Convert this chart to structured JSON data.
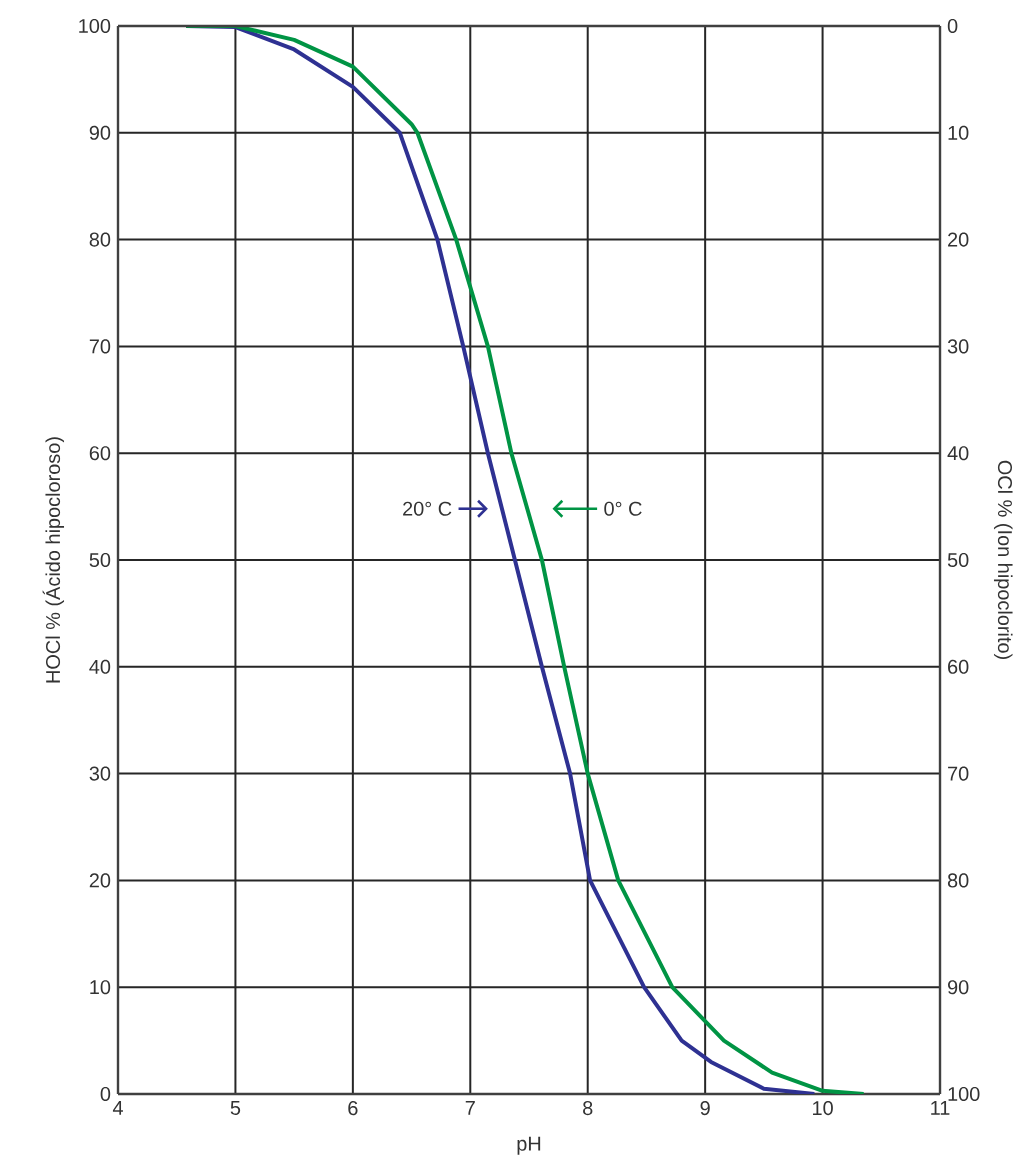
{
  "chart_data": {
    "type": "line",
    "xlabel": "pH",
    "ylabel": "HOCl % (Ácido hipocloroso)",
    "y2label": "OCl % (Ion hipoclorito)",
    "xlim": [
      4,
      11
    ],
    "xticks": [
      4,
      5,
      6,
      7,
      8,
      9,
      10,
      11
    ],
    "ylim": [
      0,
      100
    ],
    "yticks": [
      0,
      10,
      20,
      30,
      40,
      50,
      60,
      70,
      80,
      90,
      100
    ],
    "y2lim": [
      100,
      0
    ],
    "y2ticks": [
      0,
      10,
      20,
      30,
      40,
      50,
      60,
      70,
      80,
      90,
      100
    ],
    "grid": true,
    "marker": "none",
    "line_style": "solid",
    "series": [
      {
        "name": "20° C",
        "color": "#2e3192",
        "x": [
          4.58,
          5.0,
          5.5,
          6.0,
          6.4,
          6.72,
          6.94,
          7.15,
          7.38,
          7.61,
          7.85,
          8.02,
          8.48,
          8.8,
          9.05,
          9.5,
          9.93
        ],
        "values": [
          100,
          99.9,
          97.8,
          94.3,
          90,
          80,
          70,
          60,
          50,
          40,
          30,
          20,
          10,
          5,
          3,
          0.5,
          0
        ]
      },
      {
        "name": "0° C",
        "color": "#009444",
        "x": [
          4.58,
          5.0,
          5.5,
          6.0,
          6.5,
          6.55,
          6.88,
          7.15,
          7.35,
          7.61,
          7.8,
          8.0,
          8.26,
          8.72,
          9.16,
          9.57,
          10.0,
          10.35
        ],
        "values": [
          100,
          100,
          98.7,
          96.2,
          90.8,
          90,
          80,
          70,
          60,
          50,
          40,
          30,
          20,
          10,
          5,
          2,
          0.3,
          0
        ]
      }
    ]
  }
}
